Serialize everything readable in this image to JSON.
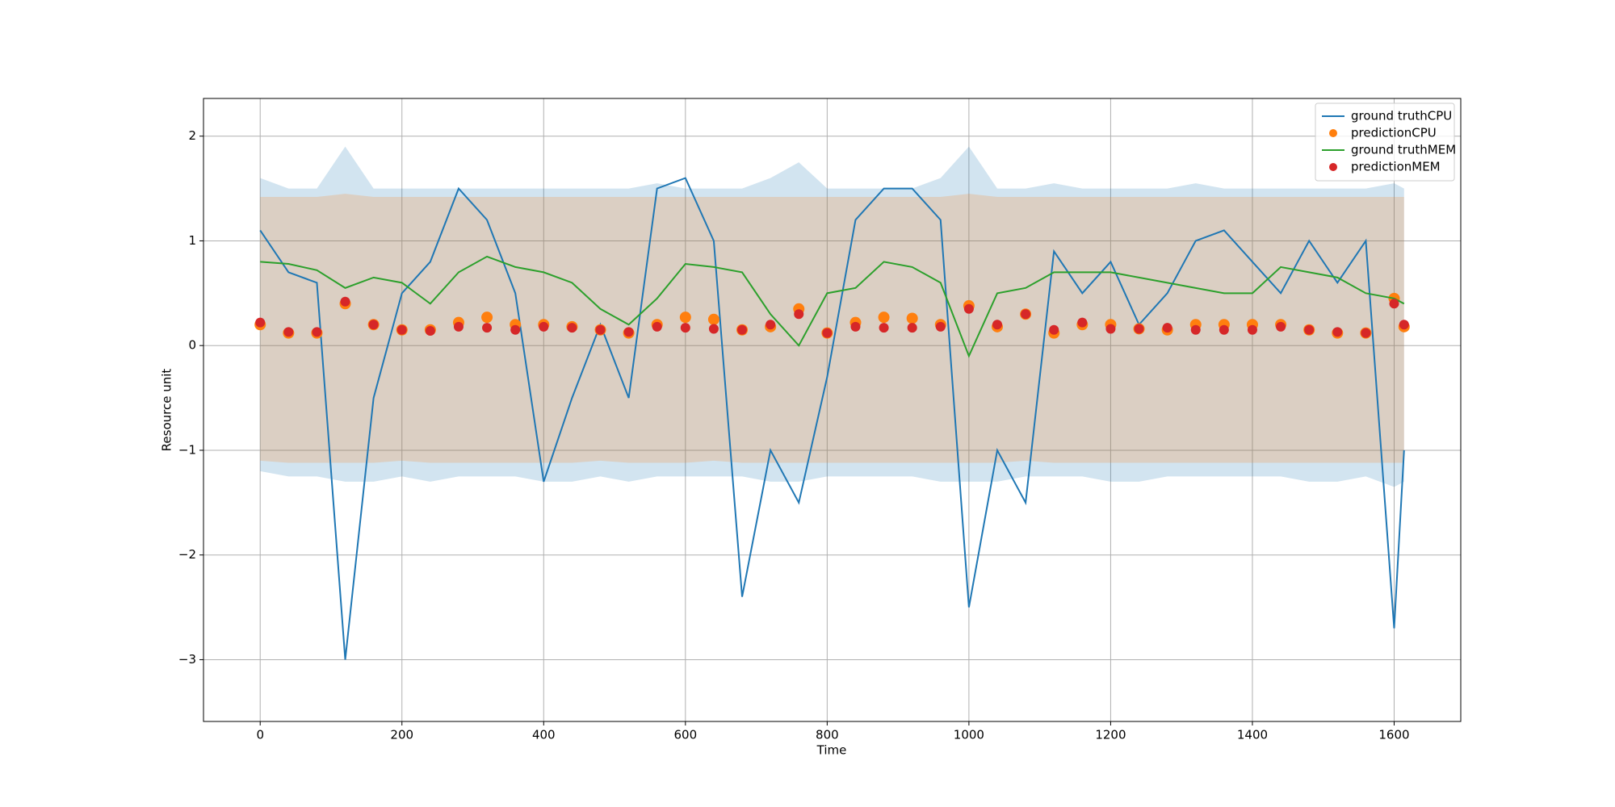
{
  "chart_data": {
    "type": "line",
    "xlabel": "Time",
    "ylabel": "Resource unit",
    "xlim": [
      -80,
      1694
    ],
    "ylim": [
      -3.59,
      2.36
    ],
    "xticks": [
      0,
      200,
      400,
      600,
      800,
      1000,
      1200,
      1400,
      1600
    ],
    "yticks": [
      {
        "value": -3,
        "label": "−3"
      },
      {
        "value": -2,
        "label": "−2"
      },
      {
        "value": -1,
        "label": "−1"
      },
      0,
      1,
      2
    ],
    "grid": true,
    "legend": "upper right",
    "x": [
      0,
      40,
      80,
      120,
      160,
      200,
      240,
      280,
      320,
      360,
      400,
      440,
      480,
      520,
      560,
      600,
      640,
      680,
      720,
      760,
      800,
      840,
      880,
      920,
      960,
      1000,
      1040,
      1080,
      1120,
      1160,
      1200,
      1240,
      1280,
      1320,
      1360,
      1400,
      1440,
      1480,
      1520,
      1560,
      1600,
      1614
    ],
    "bands": [
      {
        "color": "#1f77b4",
        "alpha": 0.2,
        "upper": [
          1.6,
          1.5,
          1.5,
          1.9,
          1.5,
          1.5,
          1.5,
          1.5,
          1.5,
          1.5,
          1.5,
          1.5,
          1.5,
          1.5,
          1.55,
          1.5,
          1.5,
          1.5,
          1.6,
          1.75,
          1.5,
          1.5,
          1.5,
          1.5,
          1.6,
          1.9,
          1.5,
          1.5,
          1.55,
          1.5,
          1.5,
          1.5,
          1.5,
          1.55,
          1.5,
          1.5,
          1.5,
          1.5,
          1.5,
          1.5,
          1.55,
          1.5
        ],
        "lower": [
          -1.2,
          -1.25,
          -1.25,
          -1.3,
          -1.3,
          -1.25,
          -1.3,
          -1.25,
          -1.25,
          -1.25,
          -1.3,
          -1.3,
          -1.25,
          -1.3,
          -1.25,
          -1.25,
          -1.25,
          -1.25,
          -1.3,
          -1.3,
          -1.25,
          -1.25,
          -1.25,
          -1.25,
          -1.3,
          -1.3,
          -1.3,
          -1.25,
          -1.25,
          -1.25,
          -1.3,
          -1.3,
          -1.25,
          -1.25,
          -1.25,
          -1.25,
          -1.25,
          -1.3,
          -1.3,
          -1.25,
          -1.35,
          -1.3
        ]
      },
      {
        "color": "#ff7f0e",
        "alpha": 0.2,
        "upper": [
          1.42,
          1.42,
          1.42,
          1.45,
          1.42,
          1.42,
          1.42,
          1.42,
          1.42,
          1.42,
          1.42,
          1.42,
          1.42,
          1.42,
          1.42,
          1.42,
          1.42,
          1.42,
          1.42,
          1.42,
          1.42,
          1.42,
          1.42,
          1.42,
          1.42,
          1.45,
          1.42,
          1.42,
          1.42,
          1.42,
          1.42,
          1.42,
          1.42,
          1.42,
          1.42,
          1.42,
          1.42,
          1.42,
          1.42,
          1.42,
          1.42,
          1.42
        ],
        "lower": [
          -1.1,
          -1.12,
          -1.12,
          -1.12,
          -1.12,
          -1.1,
          -1.12,
          -1.12,
          -1.12,
          -1.12,
          -1.12,
          -1.12,
          -1.1,
          -1.12,
          -1.12,
          -1.12,
          -1.1,
          -1.12,
          -1.12,
          -1.12,
          -1.12,
          -1.12,
          -1.12,
          -1.12,
          -1.12,
          -1.12,
          -1.12,
          -1.1,
          -1.12,
          -1.12,
          -1.12,
          -1.12,
          -1.12,
          -1.12,
          -1.12,
          -1.12,
          -1.12,
          -1.12,
          -1.12,
          -1.12,
          -1.12,
          -1.12
        ]
      }
    ],
    "series": [
      {
        "name": "ground truthCPU",
        "kind": "line",
        "color": "#1f77b4",
        "values": [
          1.1,
          0.7,
          0.6,
          -3.0,
          -0.5,
          0.5,
          0.8,
          1.5,
          1.2,
          0.5,
          -1.3,
          -0.5,
          0.2,
          -0.5,
          1.5,
          1.6,
          1.0,
          -2.4,
          -1.0,
          -1.5,
          -0.3,
          1.2,
          1.5,
          1.5,
          1.2,
          -2.5,
          -1.0,
          -1.5,
          0.9,
          0.5,
          0.8,
          0.2,
          0.5,
          1.0,
          1.1,
          0.8,
          0.5,
          1.0,
          0.6,
          1.0,
          -2.7,
          -1.0
        ]
      },
      {
        "name": "predictionCPU",
        "kind": "scatter",
        "color": "#ff7f0e",
        "size": 7,
        "values": [
          0.2,
          0.12,
          0.12,
          0.4,
          0.2,
          0.15,
          0.15,
          0.22,
          0.27,
          0.2,
          0.2,
          0.18,
          0.15,
          0.12,
          0.2,
          0.27,
          0.25,
          0.15,
          0.18,
          0.35,
          0.12,
          0.22,
          0.27,
          0.26,
          0.2,
          0.38,
          0.18,
          0.3,
          0.12,
          0.2,
          0.2,
          0.16,
          0.15,
          0.2,
          0.2,
          0.2,
          0.2,
          0.15,
          0.12,
          0.12,
          0.45,
          0.18
        ]
      },
      {
        "name": "ground truthMEM",
        "kind": "line",
        "color": "#2ca02c",
        "values": [
          0.8,
          0.78,
          0.72,
          0.55,
          0.65,
          0.6,
          0.4,
          0.7,
          0.85,
          0.75,
          0.7,
          0.6,
          0.35,
          0.2,
          0.45,
          0.78,
          0.75,
          0.7,
          0.3,
          0.0,
          0.5,
          0.55,
          0.8,
          0.75,
          0.6,
          -0.1,
          0.5,
          0.55,
          0.7,
          0.7,
          0.7,
          0.65,
          0.6,
          0.55,
          0.5,
          0.5,
          0.75,
          0.7,
          0.65,
          0.5,
          0.45,
          0.4
        ]
      },
      {
        "name": "predictionMEM",
        "kind": "scatter",
        "color": "#d62728",
        "size": 6,
        "values": [
          0.22,
          0.13,
          0.13,
          0.42,
          0.2,
          0.15,
          0.14,
          0.18,
          0.17,
          0.15,
          0.18,
          0.17,
          0.15,
          0.13,
          0.18,
          0.17,
          0.16,
          0.15,
          0.2,
          0.3,
          0.12,
          0.18,
          0.17,
          0.17,
          0.18,
          0.35,
          0.2,
          0.3,
          0.15,
          0.22,
          0.16,
          0.16,
          0.17,
          0.15,
          0.15,
          0.15,
          0.18,
          0.15,
          0.13,
          0.12,
          0.4,
          0.2
        ]
      }
    ]
  }
}
